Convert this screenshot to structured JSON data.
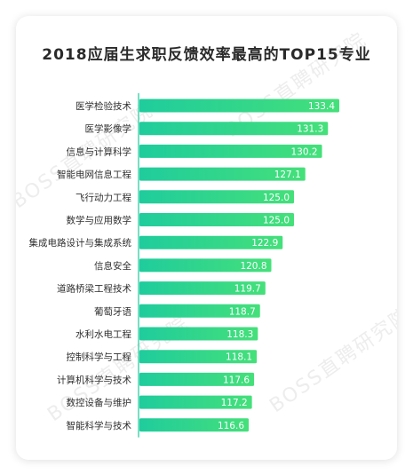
{
  "chart_data": {
    "type": "bar",
    "orientation": "horizontal",
    "title": "2018应届生求职反馈效率最高的TOP15专业",
    "categories": [
      "医学检验技术",
      "医学影像学",
      "信息与计算科学",
      "智能电网信息工程",
      "飞行动力工程",
      "数学与应用数学",
      "集成电路设计与集成系统",
      "信息安全",
      "道路桥梁工程技术",
      "葡萄牙语",
      "水利水电工程",
      "控制科学与工程",
      "计算机科学与技术",
      "数控设备与维护",
      "智能科学与技术"
    ],
    "values": [
      133.4,
      131.3,
      130.2,
      127.1,
      125.0,
      125.0,
      122.9,
      120.8,
      119.7,
      118.7,
      118.3,
      118.1,
      117.6,
      117.2,
      116.6
    ],
    "value_labels": [
      "133.4",
      "131.3",
      "130.2",
      "127.1",
      "125.0",
      "125.0",
      "122.9",
      "120.8",
      "119.7",
      "118.7",
      "118.3",
      "118.1",
      "117.6",
      "117.2",
      "116.6"
    ],
    "bar_gradient": [
      "#1fcc9c",
      "#45e07a"
    ],
    "axis_line_color": "#1fcc9c"
  },
  "watermark": "BOSS直聘研究院"
}
